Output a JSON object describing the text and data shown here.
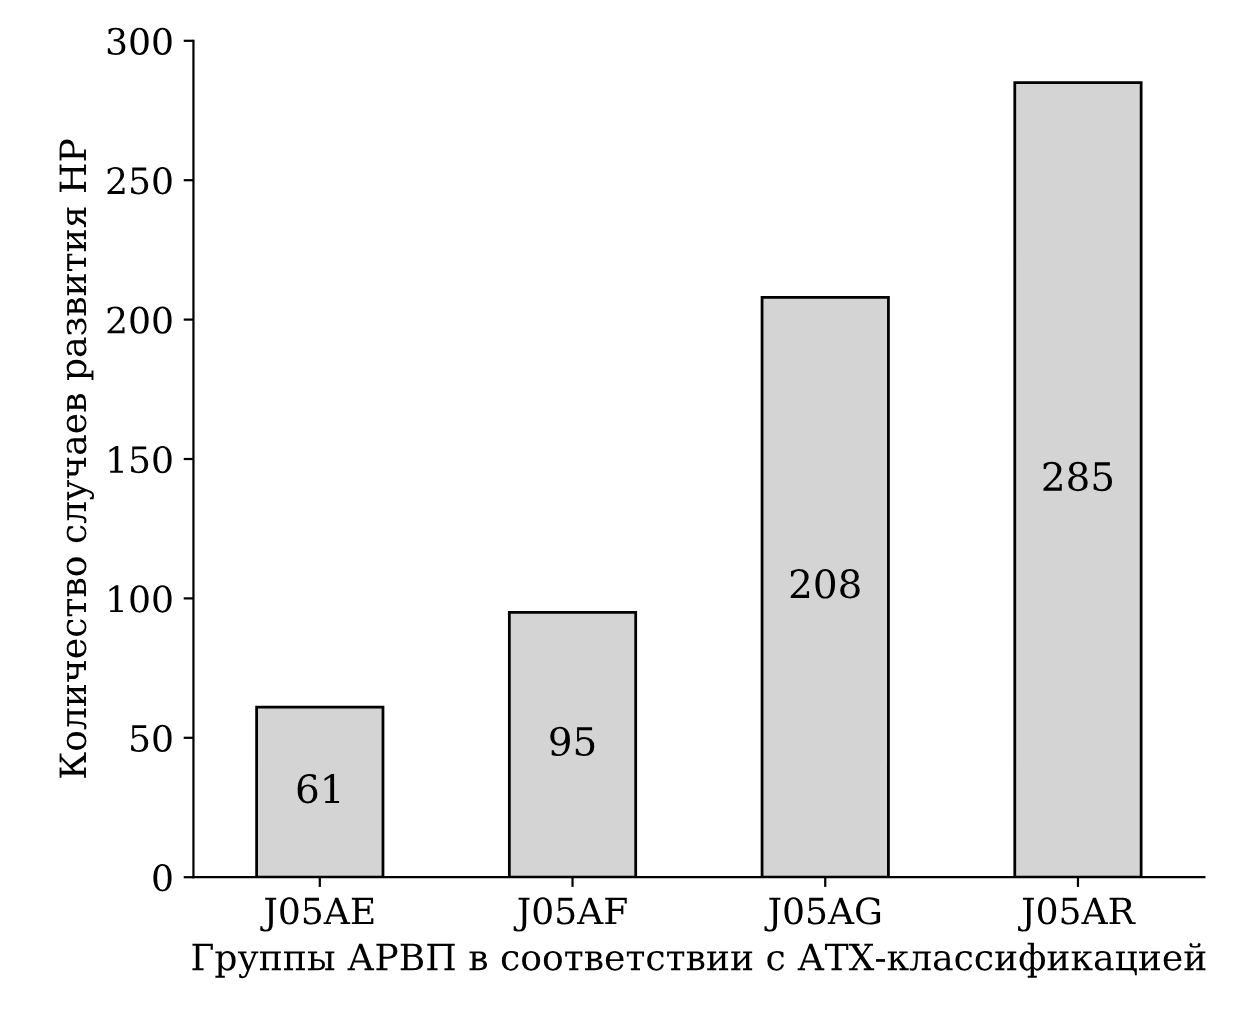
{
  "chart_data": {
    "type": "bar",
    "xlabel": "Группы АРВП в соответствии с АТХ-классификацией",
    "ylabel": "Количество случаев развития НР",
    "categories": [
      "J05AE",
      "J05AF",
      "J05AG",
      "J05AR"
    ],
    "values": [
      61,
      95,
      208,
      285
    ],
    "color": "#d4d4d4",
    "ylim": [
      0,
      300
    ],
    "yticks": [
      0,
      50,
      100,
      150,
      200,
      250,
      300
    ],
    "grid": false,
    "legend": false,
    "data_labels": true
  }
}
